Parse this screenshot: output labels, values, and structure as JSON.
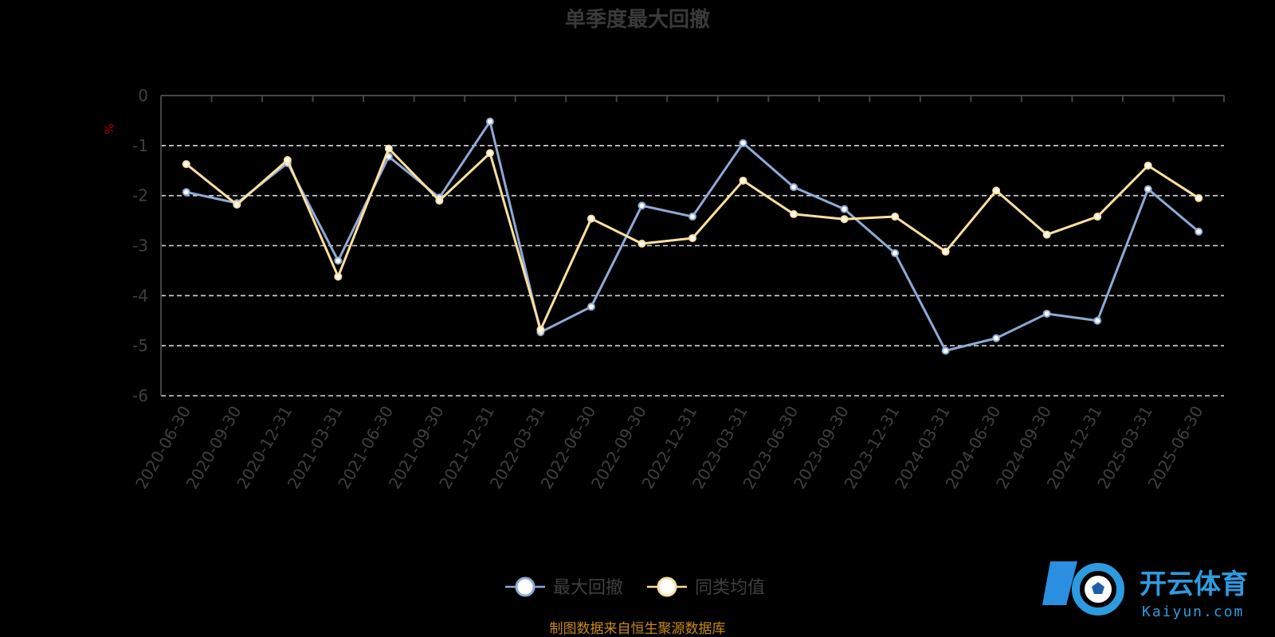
{
  "chart_data": {
    "type": "line",
    "title": "单季度最大回撤",
    "ylabel": "%",
    "ylim": [
      -6,
      0
    ],
    "yticks": [
      0,
      -1,
      -2,
      -3,
      -4,
      -5,
      -6
    ],
    "grid": true,
    "legend_position": "bottom-center",
    "categories": [
      "2020-06-30",
      "2020-09-30",
      "2020-12-31",
      "2021-03-31",
      "2021-06-30",
      "2021-09-30",
      "2021-12-31",
      "2022-03-31",
      "2022-06-30",
      "2022-09-30",
      "2022-12-31",
      "2023-03-31",
      "2023-06-30",
      "2023-09-30",
      "2023-12-31",
      "2024-03-31",
      "2024-06-30",
      "2024-09-30",
      "2024-12-31",
      "2025-03-31",
      "2025-06-30"
    ],
    "series": [
      {
        "name": "最大回撤",
        "color": "#8eaad6",
        "values": [
          -1.93,
          -2.15,
          -1.35,
          -3.3,
          -1.22,
          -2.04,
          -0.52,
          -4.73,
          -4.22,
          -2.2,
          -2.42,
          -0.95,
          -1.83,
          -2.27,
          -3.15,
          -5.1,
          -4.85,
          -4.36,
          -4.5,
          -1.87,
          -2.72
        ]
      },
      {
        "name": "同类均值",
        "color": "#ffe0a0",
        "values": [
          -1.37,
          -2.18,
          -1.29,
          -3.62,
          -1.06,
          -2.1,
          -1.15,
          -4.68,
          -2.46,
          -2.96,
          -2.85,
          -1.7,
          -2.37,
          -2.47,
          -2.42,
          -3.12,
          -1.9,
          -2.78,
          -2.42,
          -1.4,
          -2.05
        ]
      }
    ]
  },
  "source_note": "制图数据来自恒生聚源数据库",
  "watermark": {
    "text": "开云体育",
    "sub": "Kaiyun.com"
  }
}
